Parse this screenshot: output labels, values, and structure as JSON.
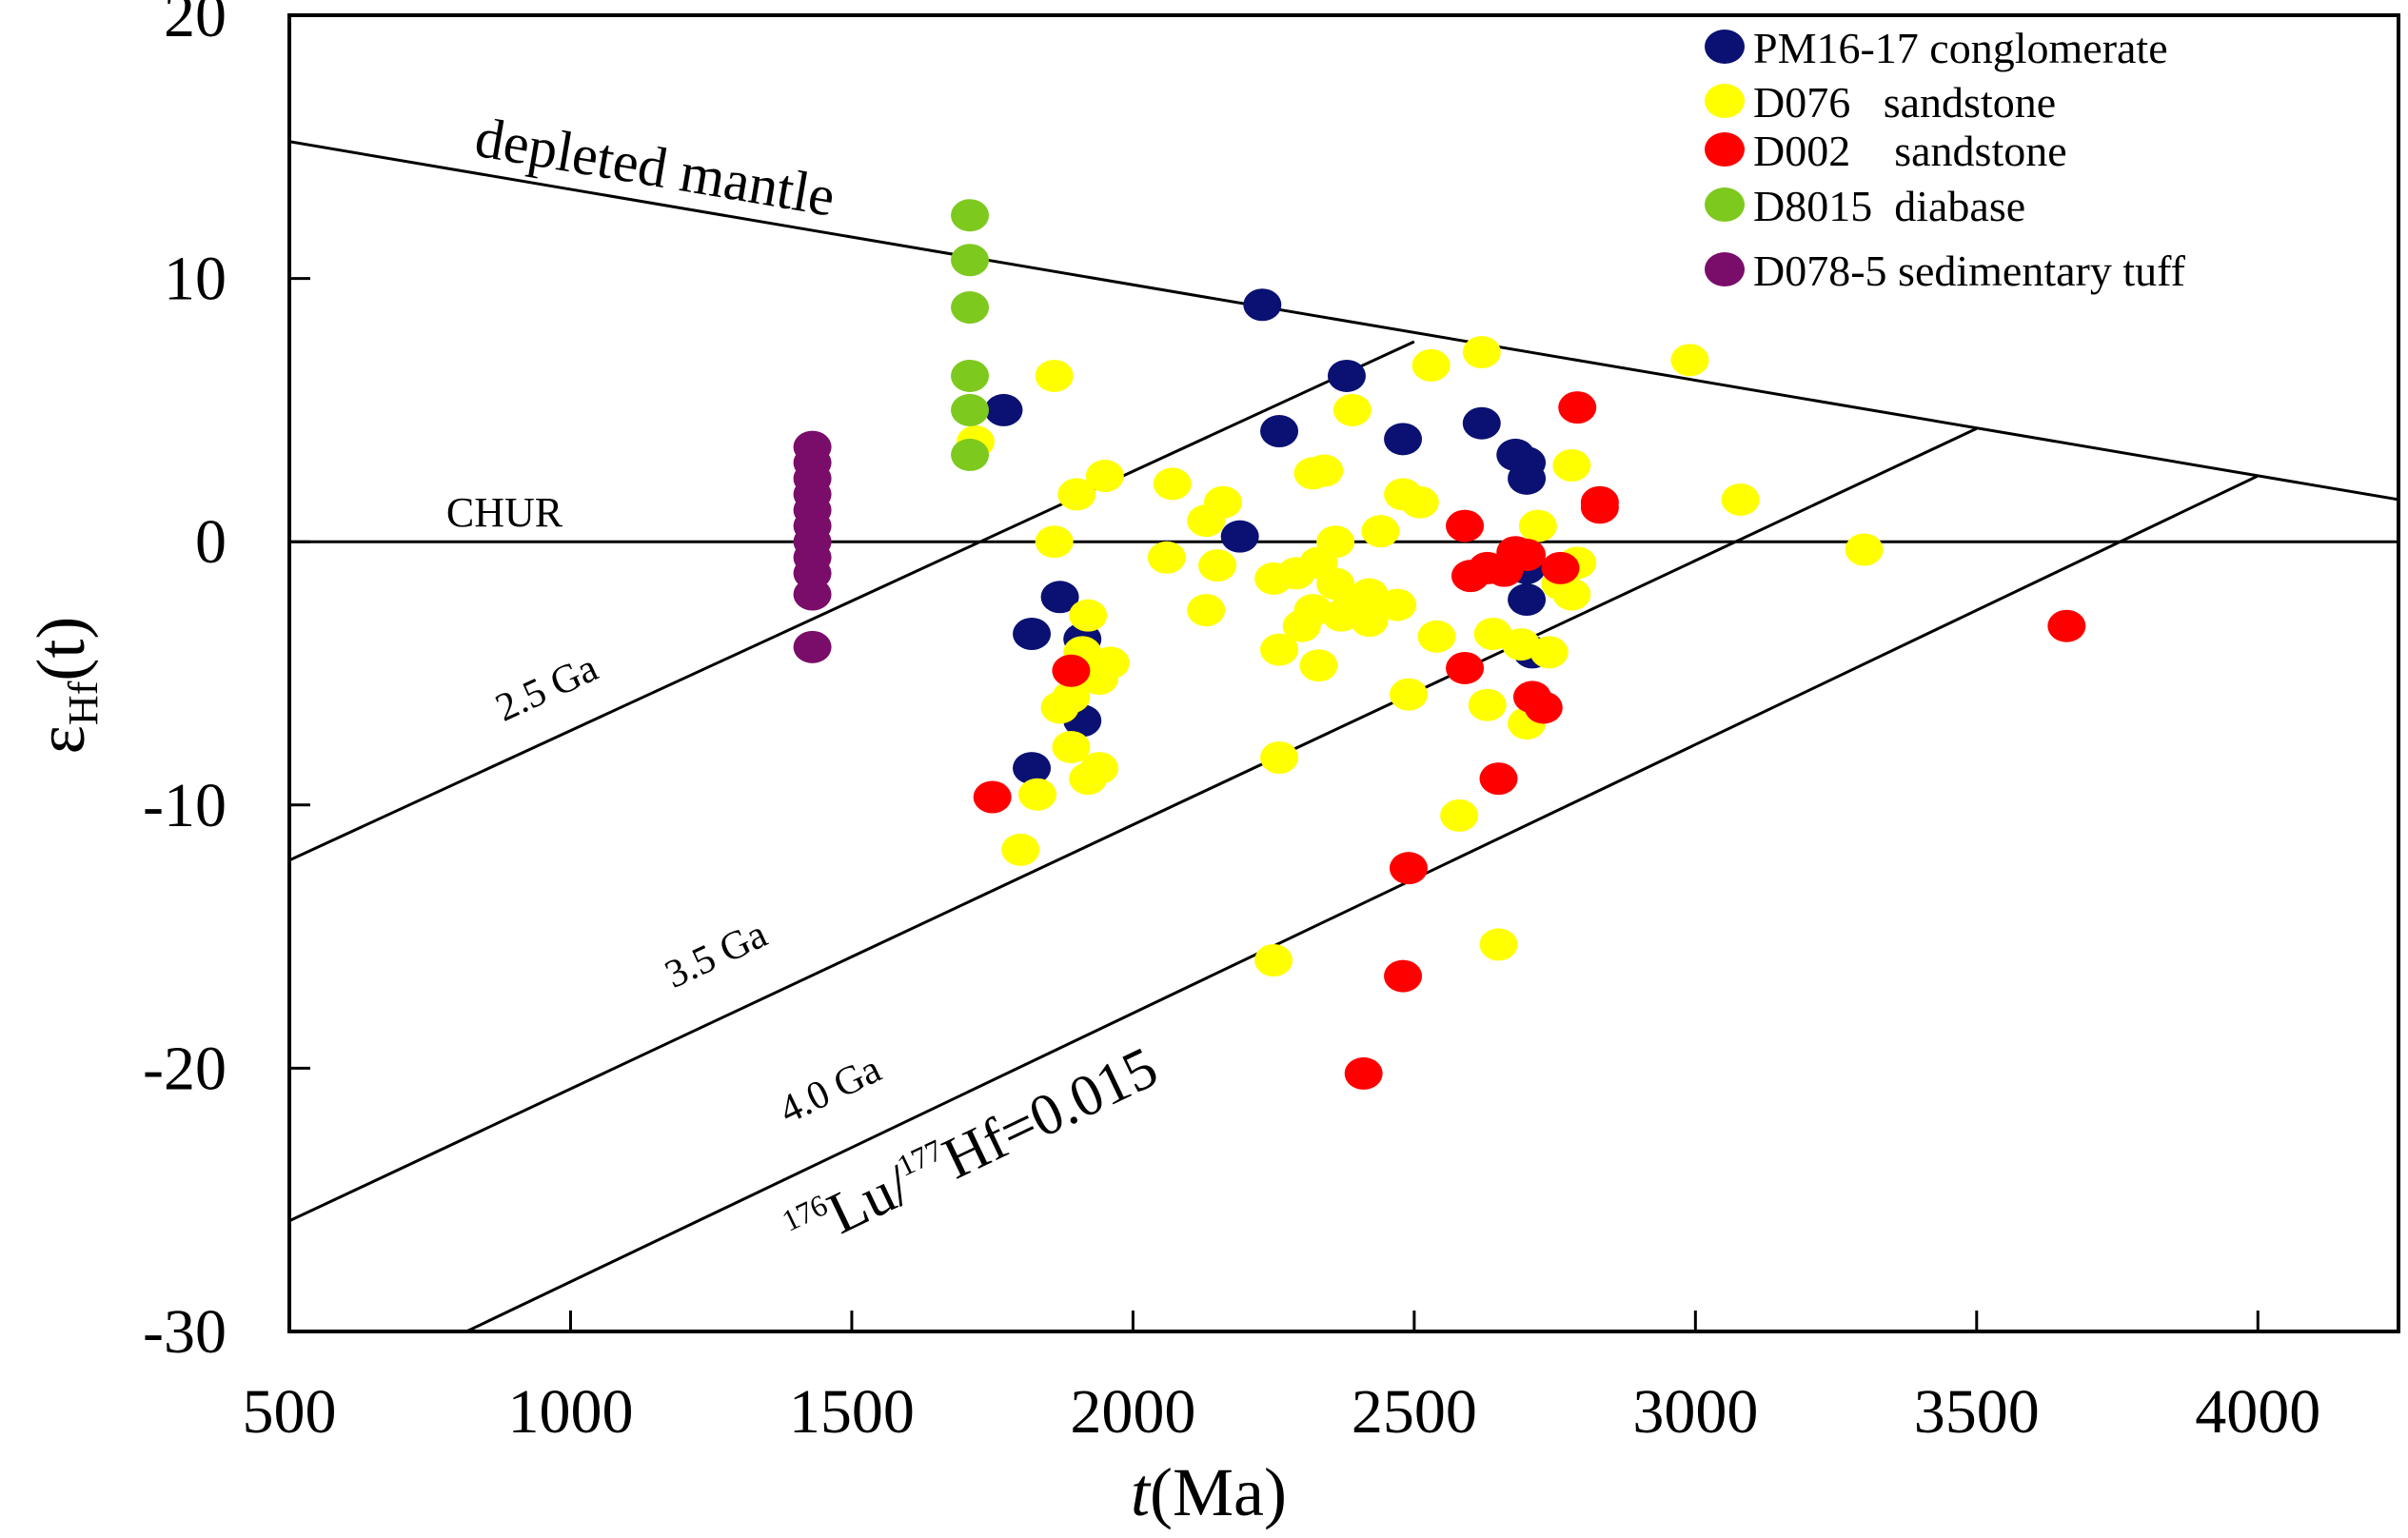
{
  "chart_data": {
    "type": "scatter",
    "xlabel_italic": "t",
    "xlabel_rest": "(Ma)",
    "ylabel_symbol": "ε",
    "ylabel_sub": "Hf",
    "ylabel_rest": "(t)",
    "xlim": [
      500,
      4250
    ],
    "ylim": [
      -30,
      20
    ],
    "xticks": [
      500,
      1000,
      1500,
      2000,
      2500,
      3000,
      3500,
      4000
    ],
    "yticks": [
      20,
      10,
      0,
      -10,
      -20,
      -30
    ],
    "reference_lines": [
      {
        "name": "depleted mantle",
        "label": "depleted mantle",
        "x1": 500,
        "y1": 15.2,
        "x2": 4250,
        "y2": 1.6
      },
      {
        "name": "CHUR",
        "label": "CHUR",
        "x1": 500,
        "y1": 0,
        "x2": 4250,
        "y2": 0
      },
      {
        "name": "2.5 Ga",
        "label": "2.5 Ga",
        "x1": 500,
        "y1": -12.1,
        "x2": 2500,
        "y2": 7.6
      },
      {
        "name": "3.5 Ga",
        "label": "3.5 Ga",
        "x1": 500,
        "y1": -25.8,
        "x2": 3500,
        "y2": 4.3
      },
      {
        "name": "4.0 Ga",
        "label": "4.0 Ga",
        "x1": 815,
        "y1": -30,
        "x2": 4000,
        "y2": 2.5
      }
    ],
    "lu_hf_label": {
      "sup1": "176",
      "part1": "Lu/",
      "sup2": "177",
      "part2": "Hf=0.015"
    },
    "series": [
      {
        "name": "PM16-17 conglomerate",
        "color": "#0a1172",
        "points": [
          [
            2230,
            9
          ],
          [
            2380,
            6.3
          ],
          [
            1770,
            5
          ],
          [
            2620,
            4.5
          ],
          [
            2480,
            3.9
          ],
          [
            2680,
            3.3
          ],
          [
            2700,
            3
          ],
          [
            2260,
            4.2
          ],
          [
            2700,
            2.4
          ],
          [
            2190,
            0.2
          ],
          [
            2700,
            -1
          ],
          [
            2700,
            -2.2
          ],
          [
            2710,
            -4.2
          ],
          [
            1870,
            -2.1
          ],
          [
            1820,
            -3.5
          ],
          [
            1910,
            -3.7
          ],
          [
            1910,
            -6.8
          ],
          [
            1820,
            -8.6
          ]
        ]
      },
      {
        "name": "D076 sandstone",
        "color": "#ffff00",
        "points": [
          [
            1860,
            6.3
          ],
          [
            2530,
            6.7
          ],
          [
            2620,
            7.2
          ],
          [
            2990,
            6.9
          ],
          [
            2390,
            5
          ],
          [
            1720,
            3.8
          ],
          [
            2320,
            2.6
          ],
          [
            2340,
            2.7
          ],
          [
            2480,
            1.8
          ],
          [
            2510,
            1.5
          ],
          [
            2780,
            2.9
          ],
          [
            3080,
            1.6
          ],
          [
            1950,
            2.5
          ],
          [
            1900,
            1.8
          ],
          [
            2070,
            2.2
          ],
          [
            2130,
            0.8
          ],
          [
            2160,
            1.5
          ],
          [
            1860,
            0
          ],
          [
            2060,
            -0.6
          ],
          [
            2150,
            -0.9
          ],
          [
            2250,
            -1.4
          ],
          [
            2290,
            -1.2
          ],
          [
            2330,
            -0.8
          ],
          [
            2360,
            0
          ],
          [
            2440,
            0.4
          ],
          [
            2360,
            -1.6
          ],
          [
            2320,
            -2.6
          ],
          [
            2390,
            -2.3
          ],
          [
            2420,
            -2
          ],
          [
            2470,
            -2.4
          ],
          [
            2130,
            -2.6
          ],
          [
            2300,
            -3.2
          ],
          [
            2370,
            -2.8
          ],
          [
            2420,
            -3
          ],
          [
            2540,
            -3.6
          ],
          [
            2640,
            -3.5
          ],
          [
            2690,
            -3.9
          ],
          [
            2740,
            -4.2
          ],
          [
            2780,
            -2
          ],
          [
            2760,
            -1.6
          ],
          [
            2720,
            0.6
          ],
          [
            2790,
            -0.8
          ],
          [
            3300,
            -0.3
          ],
          [
            2260,
            -4.1
          ],
          [
            2330,
            -4.7
          ],
          [
            1920,
            -2.8
          ],
          [
            1910,
            -4.2
          ],
          [
            1940,
            -5.2
          ],
          [
            1960,
            -4.6
          ],
          [
            1890,
            -5.9
          ],
          [
            1870,
            -6.3
          ],
          [
            1890,
            -7.8
          ],
          [
            1940,
            -8.6
          ],
          [
            1920,
            -9
          ],
          [
            1830,
            -9.6
          ],
          [
            1800,
            -11.7
          ],
          [
            2490,
            -5.8
          ],
          [
            2630,
            -6.2
          ],
          [
            2700,
            -6.9
          ],
          [
            2260,
            -8.2
          ],
          [
            2580,
            -10.4
          ],
          [
            2250,
            -15.9
          ],
          [
            2650,
            -15.3
          ]
        ]
      },
      {
        "name": "D002 sandstone",
        "color": "#ff0000",
        "points": [
          [
            2790,
            5.1
          ],
          [
            2830,
            1.3
          ],
          [
            2830,
            1.5
          ],
          [
            2590,
            0.6
          ],
          [
            2600,
            -1.3
          ],
          [
            2630,
            -1
          ],
          [
            2660,
            -1.1
          ],
          [
            2680,
            -0.4
          ],
          [
            2700,
            -0.5
          ],
          [
            2760,
            -1
          ],
          [
            2590,
            -4.8
          ],
          [
            1890,
            -4.9
          ],
          [
            2730,
            -6.3
          ],
          [
            2710,
            -5.9
          ],
          [
            2650,
            -9
          ],
          [
            1750,
            -9.7
          ],
          [
            2490,
            -12.4
          ],
          [
            2480,
            -16.5
          ],
          [
            2410,
            -20.2
          ],
          [
            3660,
            -3.2
          ]
        ]
      },
      {
        "name": "D8015 diabase",
        "color": "#7dc91e",
        "points": [
          [
            1710,
            12.4
          ],
          [
            1710,
            10.7
          ],
          [
            1710,
            8.9
          ],
          [
            1710,
            6.3
          ],
          [
            1710,
            5
          ],
          [
            1710,
            3.3
          ]
        ]
      },
      {
        "name": "D078-5 sedimentary tuff",
        "color": "#7a0c6a",
        "points": [
          [
            1430,
            3.6
          ],
          [
            1430,
            3
          ],
          [
            1430,
            2.4
          ],
          [
            1430,
            1.8
          ],
          [
            1430,
            1.2
          ],
          [
            1430,
            0.6
          ],
          [
            1430,
            0
          ],
          [
            1430,
            -0.6
          ],
          [
            1430,
            -1.2
          ],
          [
            1430,
            -2
          ],
          [
            1430,
            -4
          ]
        ]
      }
    ],
    "legend_labels": [
      "PM16-17 conglomerate",
      "D076   sandstone",
      "D002    sandstone",
      "D8015  diabase",
      "D078-5 sedimentary tuff"
    ]
  }
}
